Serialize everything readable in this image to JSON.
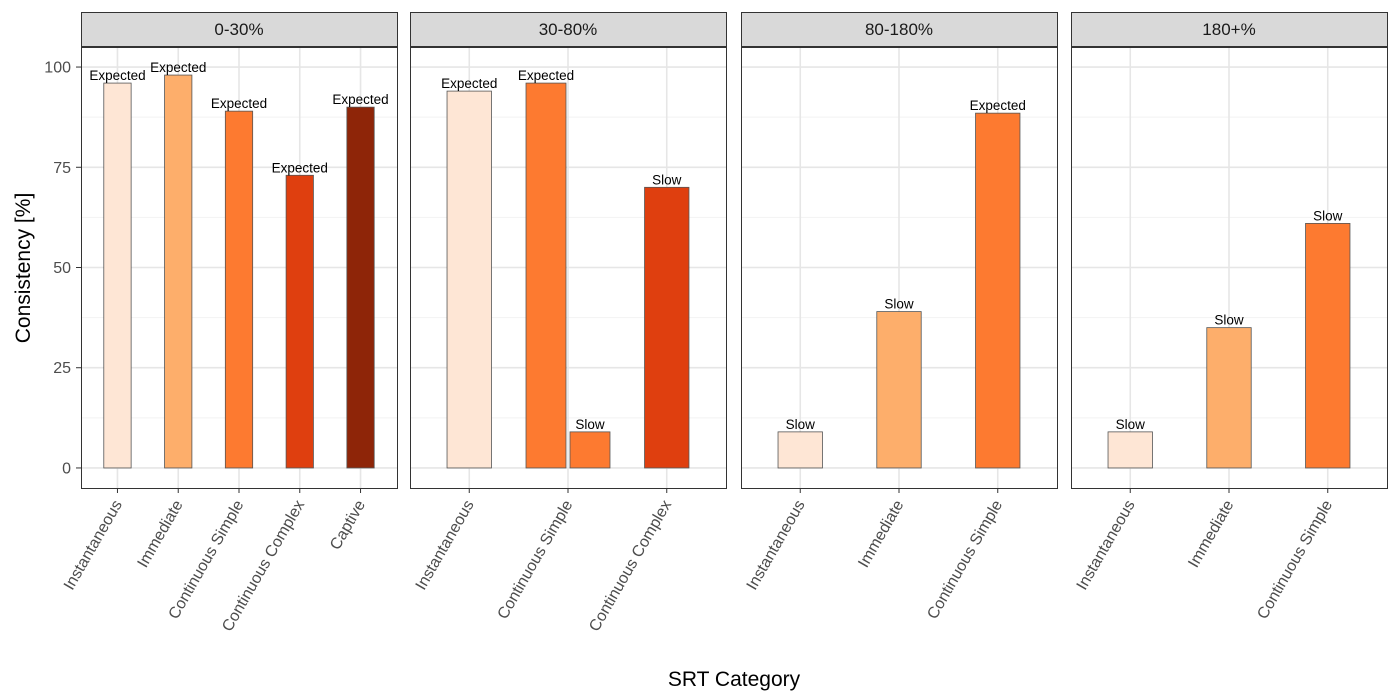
{
  "chart_data": {
    "type": "bar",
    "xlabel": "SRT Category",
    "ylabel": "Consistency [%]",
    "ylim": [
      -5,
      105
    ],
    "yticks": [
      0,
      25,
      50,
      75,
      100
    ],
    "grid": true,
    "colors": {
      "Instantaneous": "#fee6d5",
      "Immediate": "#fdae6b",
      "Continuous Simple": "#fd7a30",
      "Continuous Complex": "#df3f0f",
      "Captive": "#8e2508"
    },
    "panels": [
      {
        "title": "0-30%",
        "categories": [
          "Instantaneous",
          "Immediate",
          "Continuous Simple",
          "Continuous Complex",
          "Captive"
        ],
        "bars": [
          {
            "category": "Instantaneous",
            "value": 96,
            "label": "Expected"
          },
          {
            "category": "Immediate",
            "value": 98,
            "label": "Expected"
          },
          {
            "category": "Continuous Simple",
            "value": 89,
            "label": "Expected"
          },
          {
            "category": "Continuous Complex",
            "value": 73,
            "label": "Expected"
          },
          {
            "category": "Captive",
            "value": 90,
            "label": "Expected"
          }
        ]
      },
      {
        "title": "30-80%",
        "categories": [
          "Instantaneous",
          "Continuous Simple",
          "Continuous Complex"
        ],
        "bars": [
          {
            "category": "Instantaneous",
            "value": 94,
            "label": "Expected"
          },
          {
            "category": "Continuous Simple",
            "value": 96,
            "label": "Expected",
            "dodge": -1
          },
          {
            "category": "Continuous Simple",
            "value": 9,
            "label": "Slow",
            "dodge": 1
          },
          {
            "category": "Continuous Complex",
            "value": 70,
            "label": "Slow"
          }
        ]
      },
      {
        "title": "80-180%",
        "categories": [
          "Instantaneous",
          "Immediate",
          "Continuous Simple"
        ],
        "bars": [
          {
            "category": "Instantaneous",
            "value": 9,
            "label": "Slow"
          },
          {
            "category": "Immediate",
            "value": 39,
            "label": "Slow"
          },
          {
            "category": "Continuous Simple",
            "value": 88.5,
            "label": "Expected"
          }
        ]
      },
      {
        "title": "180+%",
        "categories": [
          "Instantaneous",
          "Immediate",
          "Continuous Simple"
        ],
        "bars": [
          {
            "category": "Instantaneous",
            "value": 9,
            "label": "Slow"
          },
          {
            "category": "Immediate",
            "value": 35,
            "label": "Slow"
          },
          {
            "category": "Continuous Simple",
            "value": 61,
            "label": "Slow"
          }
        ]
      }
    ]
  }
}
